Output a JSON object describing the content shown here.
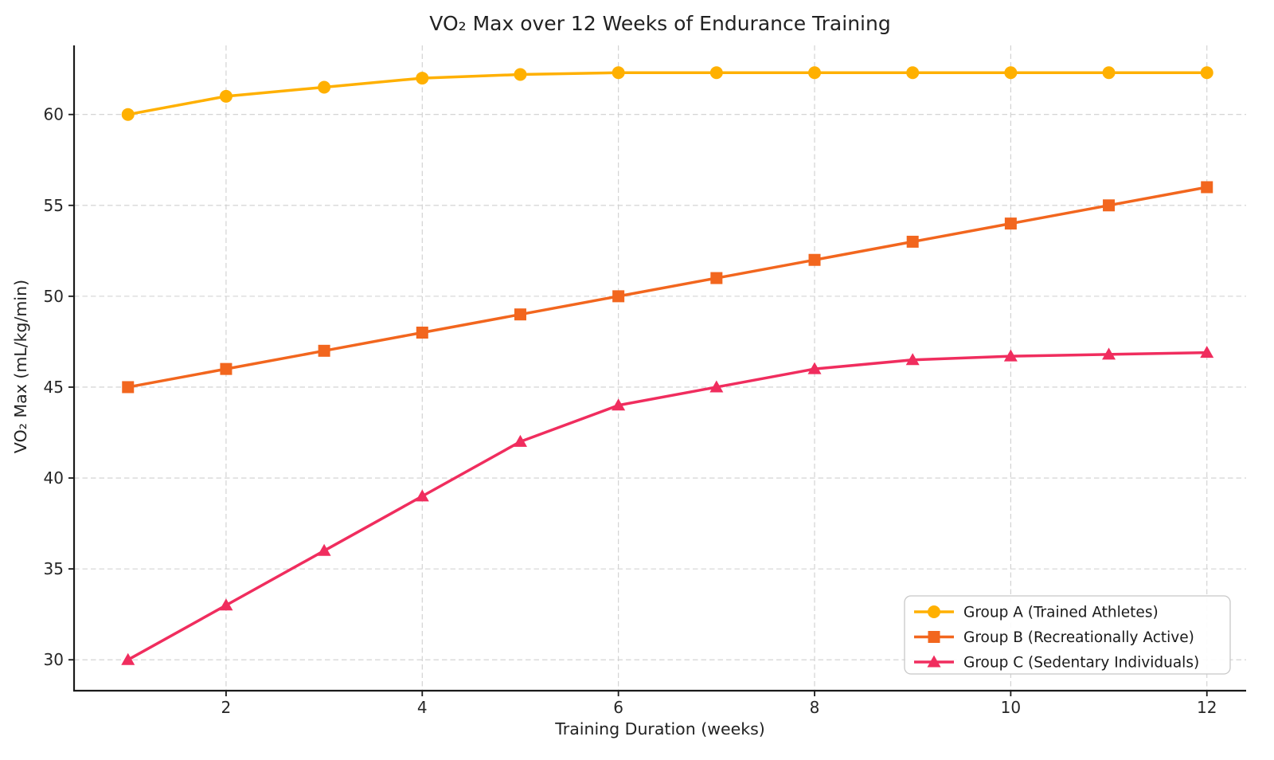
{
  "chart_data": {
    "type": "line",
    "title": "VO₂ Max over 12 Weeks of Endurance Training",
    "xlabel": "Training Duration (weeks)",
    "ylabel": "VO₂ Max (mL/kg/min)",
    "x": [
      1,
      2,
      3,
      4,
      5,
      6,
      7,
      8,
      9,
      10,
      11,
      12
    ],
    "series": [
      {
        "name": "Group A (Trained Athletes)",
        "color": "#FFB000",
        "marker": "circle",
        "values": [
          60.0,
          61.0,
          61.5,
          62.0,
          62.2,
          62.3,
          62.3,
          62.3,
          62.3,
          62.3,
          62.3,
          62.3
        ]
      },
      {
        "name": "Group B (Recreationally Active)",
        "color": "#F2661E",
        "marker": "square",
        "values": [
          45,
          46,
          47,
          48,
          49,
          50,
          51,
          52,
          53,
          54,
          55,
          56
        ]
      },
      {
        "name": "Group C (Sedentary Individuals)",
        "color": "#F02D5E",
        "marker": "triangle",
        "values": [
          30,
          33,
          36,
          39,
          42,
          44,
          45,
          46,
          46.5,
          46.7,
          46.8,
          46.9
        ]
      }
    ],
    "xlim": [
      0.45,
      12.4
    ],
    "ylim": [
      28.3,
      63.8
    ],
    "xticks": [
      2,
      4,
      6,
      8,
      10,
      12
    ],
    "yticks": [
      30,
      35,
      40,
      45,
      50,
      55,
      60
    ],
    "grid": true,
    "legend_position": "lower right",
    "colors": {
      "spine": "#1a1a1a",
      "grid": "#cfcfcf",
      "tick_label": "#262626",
      "legend_border": "#c8c8c8"
    }
  }
}
